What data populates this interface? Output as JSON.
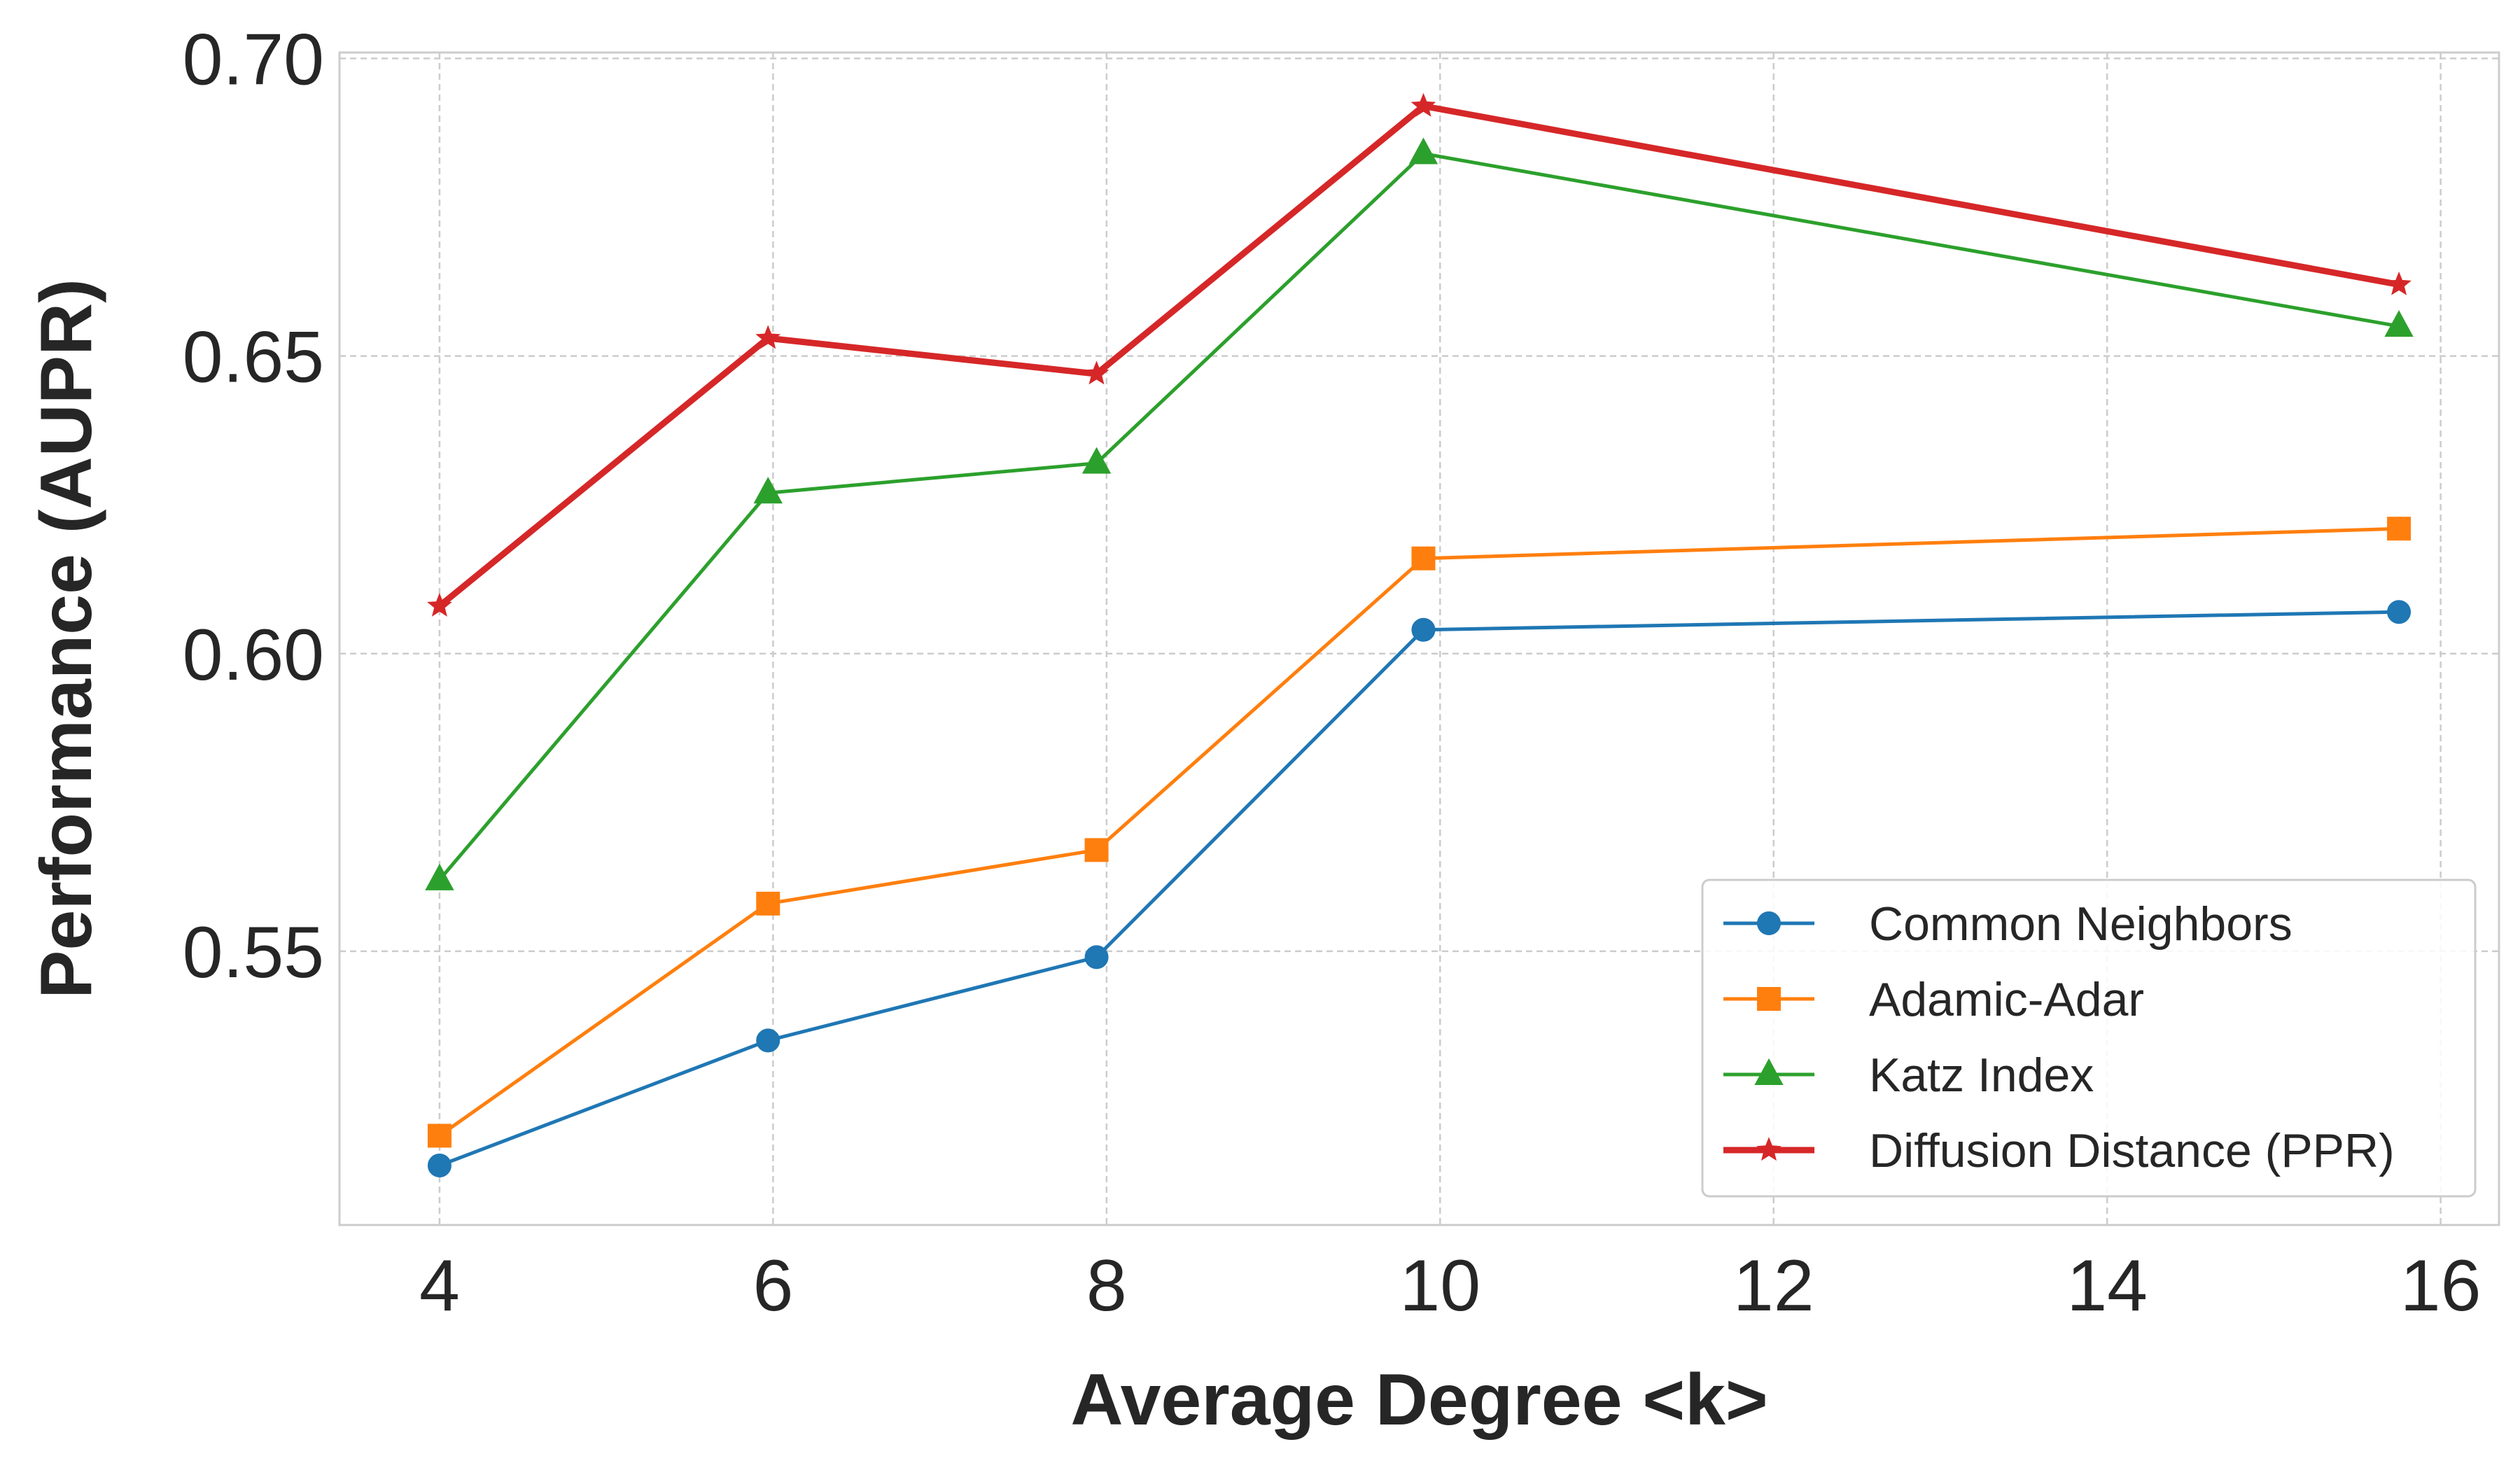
{
  "chart_data": {
    "type": "line",
    "title": "",
    "xlabel": "Average Degree <k>",
    "ylabel": "Performance (AUPR)",
    "xlim": [
      3.4,
      16.35
    ],
    "ylim": [
      0.504,
      0.701
    ],
    "xticks": [
      4,
      6,
      8,
      10,
      12,
      14,
      16
    ],
    "xtick_labels": [
      "4",
      "6",
      "8",
      "10",
      "12",
      "14",
      "16"
    ],
    "yticks": [
      0.55,
      0.6,
      0.65,
      0.7
    ],
    "ytick_labels": [
      "0.55",
      "0.60",
      "0.65",
      "0.70"
    ],
    "grid": true,
    "legend_position": "bottom-right",
    "x": [
      4.0,
      5.97,
      7.94,
      9.9,
      15.75
    ],
    "series": [
      {
        "name": "Common Neighbors",
        "values": [
          0.514,
          0.535,
          0.549,
          0.604,
          0.607
        ],
        "color": "#1f77b4",
        "marker": "circle",
        "linewidth": 5
      },
      {
        "name": "Adamic-Adar",
        "values": [
          0.519,
          0.558,
          0.567,
          0.616,
          0.621
        ],
        "color": "#ff7f0e",
        "marker": "square",
        "linewidth": 5
      },
      {
        "name": "Katz Index",
        "values": [
          0.562,
          0.627,
          0.632,
          0.684,
          0.655
        ],
        "color": "#2ca02c",
        "marker": "triangle",
        "linewidth": 5
      },
      {
        "name": "Diffusion Distance (PPR)",
        "values": [
          0.608,
          0.653,
          0.647,
          0.692,
          0.662
        ],
        "color": "#d62728",
        "marker": "star",
        "linewidth": 9
      }
    ]
  }
}
